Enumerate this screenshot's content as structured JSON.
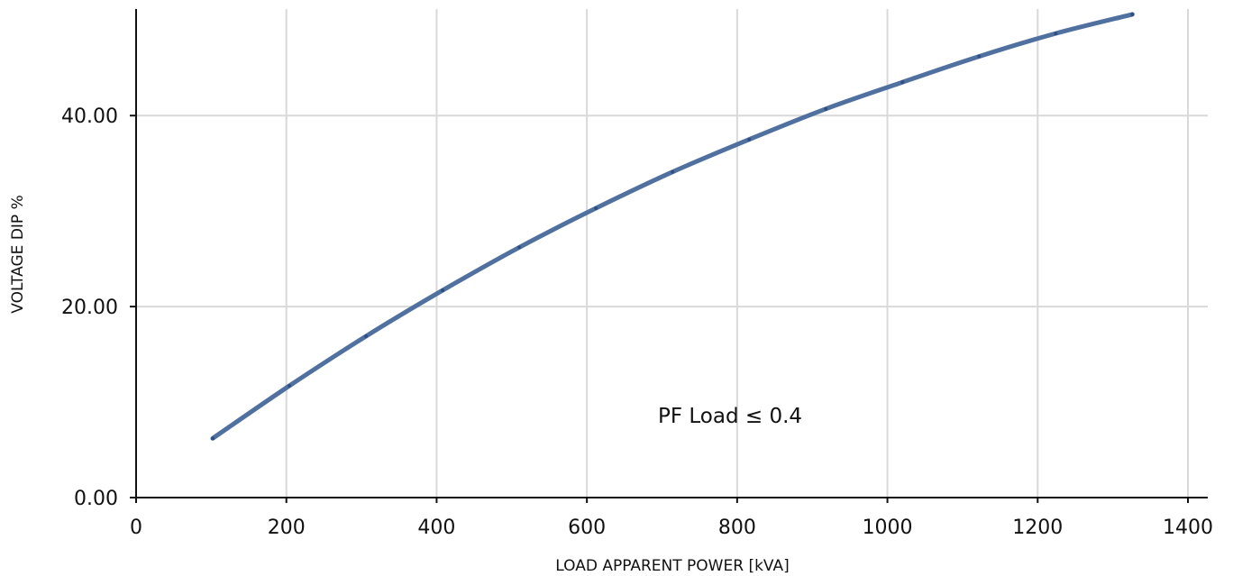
{
  "chart_data": {
    "type": "line",
    "title": "",
    "xlabel": "LOAD APPARENT POWER [kVA]",
    "ylabel": "VOLTAGE DIP %",
    "xlim": [
      0,
      1400
    ],
    "ylim": [
      0,
      50.5
    ],
    "x_ticks": [
      0,
      200,
      400,
      600,
      800,
      1000,
      1200,
      1400
    ],
    "x_tick_labels": [
      "0",
      "200",
      "400",
      "600",
      "800",
      "1000",
      "1200",
      "1400"
    ],
    "y_ticks": [
      0,
      20,
      40
    ],
    "y_tick_labels": [
      "0.00",
      "20.00",
      "40.00"
    ],
    "grid": true,
    "annotation": "PF Load ≤ 0.4",
    "colors": {
      "line": "#5070a0",
      "marker": "#2f4f84",
      "grid": "#d9d9d9",
      "axis": "#111111"
    },
    "series": [
      {
        "name": "",
        "x": [
          102,
          204,
          306,
          408,
          510,
          612,
          714,
          816,
          918,
          1020,
          1122,
          1224,
          1326
        ],
        "y": [
          6.2,
          11.7,
          16.9,
          21.7,
          26.2,
          30.3,
          34.1,
          37.5,
          40.7,
          43.5,
          46.2,
          48.6,
          50.6
        ]
      }
    ]
  }
}
